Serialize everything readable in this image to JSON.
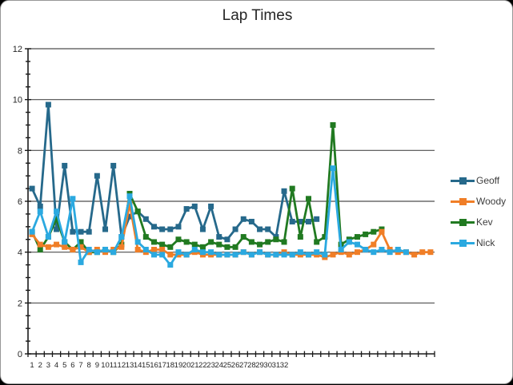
{
  "window": {
    "background": "#ffffff",
    "border_color": "#979797"
  },
  "chart_data": {
    "type": "line",
    "title": "Lap Times",
    "xlabel": "",
    "ylabel": "",
    "grid": true,
    "legend_position": "right",
    "y_axis": {
      "min": 0,
      "max": 12,
      "major_step": 2,
      "minor_step": 0.5,
      "tick_labels": [
        "0",
        "2",
        "4",
        "6",
        "8",
        "10",
        "12"
      ]
    },
    "x_axis": {
      "categories_total": 50,
      "tick_labels": [
        "1",
        "2",
        "3",
        "4",
        "5",
        "6",
        "7",
        "8",
        "9",
        "10",
        "11",
        "12",
        "13",
        "14",
        "15",
        "16",
        "17",
        "18",
        "19",
        "20",
        "21",
        "22",
        "23",
        "24",
        "25",
        "26",
        "27",
        "28",
        "29",
        "30",
        "31",
        "32"
      ]
    },
    "colors": {
      "gridline": "#4d4d4d",
      "axis": "#1a1a1a",
      "tick_label": "#262626"
    },
    "series": [
      {
        "name": "Geoff",
        "color": "#26698b",
        "values": [
          6.5,
          5.8,
          9.8,
          4.9,
          7.4,
          4.8,
          4.8,
          4.8,
          7.0,
          4.9,
          7.4,
          4.6,
          5.4,
          5.6,
          5.3,
          5.0,
          4.9,
          4.9,
          5.0,
          5.7,
          5.8,
          4.9,
          5.8,
          4.6,
          4.5,
          4.9,
          5.3,
          5.2,
          4.9,
          4.9,
          4.6,
          6.4,
          5.2,
          5.2,
          5.2,
          5.3
        ]
      },
      {
        "name": "Woody",
        "color": "#f07e27",
        "values": [
          4.7,
          4.3,
          4.2,
          4.3,
          4.2,
          4.1,
          4.2,
          4.0,
          4.1,
          4.0,
          4.1,
          4.2,
          5.9,
          4.1,
          4.0,
          4.1,
          4.1,
          3.9,
          3.9,
          3.9,
          4.0,
          3.9,
          3.9,
          3.9,
          3.9,
          3.9,
          4.0,
          3.9,
          4.0,
          3.9,
          3.9,
          4.0,
          3.9,
          3.9,
          3.9,
          3.9,
          3.8,
          3.9,
          4.0,
          3.9,
          4.0,
          4.1,
          4.3,
          4.8,
          4.1,
          4.0,
          4.0,
          3.9,
          4.0,
          4.0
        ]
      },
      {
        "name": "Kev",
        "color": "#217a21",
        "values": [
          4.8,
          4.1,
          4.6,
          5.3,
          4.4,
          4.1,
          4.4,
          4.0,
          4.0,
          4.1,
          4.0,
          4.3,
          6.3,
          5.6,
          4.6,
          4.4,
          4.3,
          4.2,
          4.5,
          4.4,
          4.3,
          4.2,
          4.4,
          4.3,
          4.2,
          4.2,
          4.6,
          4.4,
          4.3,
          4.4,
          4.5,
          4.4,
          6.5,
          4.6,
          6.1,
          4.4,
          4.6,
          9.0,
          4.3,
          4.5,
          4.6,
          4.7,
          4.8,
          4.9
        ]
      },
      {
        "name": "Nick",
        "color": "#2ba9e0",
        "values": [
          4.8,
          5.6,
          4.6,
          5.6,
          4.4,
          6.1,
          3.6,
          4.1,
          4.0,
          4.1,
          4.0,
          4.6,
          6.2,
          4.4,
          4.1,
          3.9,
          3.9,
          3.5,
          4.0,
          3.9,
          4.1,
          4.0,
          4.0,
          3.9,
          3.9,
          3.9,
          4.0,
          3.9,
          4.0,
          3.9,
          3.9,
          3.9,
          3.9,
          4.0,
          3.9,
          4.0,
          3.9,
          7.3,
          4.1,
          4.4,
          4.3,
          4.1,
          4.0,
          4.1,
          4.0,
          4.1,
          4.0
        ]
      }
    ]
  }
}
